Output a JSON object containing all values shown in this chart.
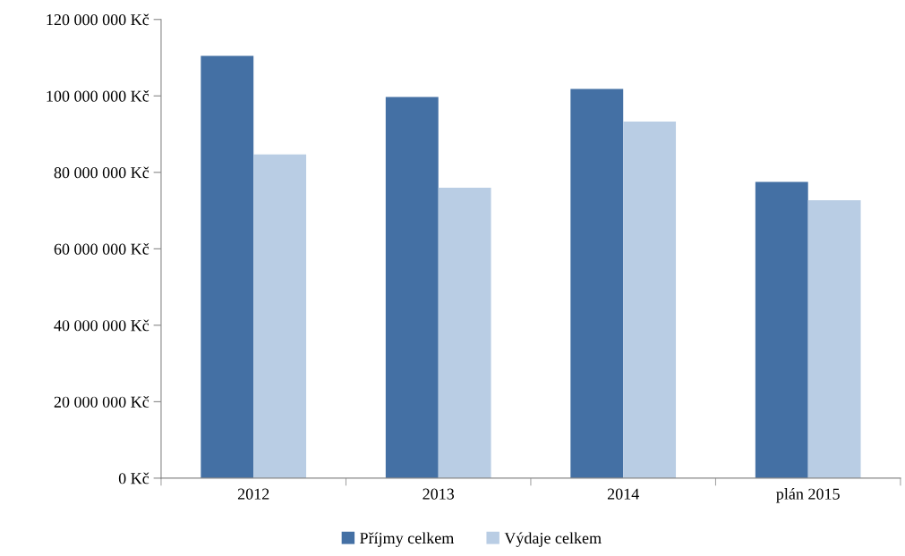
{
  "chart_data": {
    "type": "bar",
    "categories": [
      "2012",
      "2013",
      "2014",
      "plán 2015"
    ],
    "series": [
      {
        "name": "Příjmy celkem",
        "color": "#4470a4",
        "values": [
          110500000,
          99700000,
          101800000,
          77500000
        ]
      },
      {
        "name": "Výdaje celkem",
        "color": "#b9cde4",
        "values": [
          84700000,
          76000000,
          93300000,
          72700000
        ]
      }
    ],
    "ylim": [
      0,
      120000000
    ],
    "yticks": [
      {
        "value": 0,
        "label": "0 Kč"
      },
      {
        "value": 20000000,
        "label": "20 000 000 Kč"
      },
      {
        "value": 40000000,
        "label": "40 000 000 Kč"
      },
      {
        "value": 60000000,
        "label": "60 000 000 Kč"
      },
      {
        "value": 80000000,
        "label": "80 000 000 Kč"
      },
      {
        "value": 100000000,
        "label": "100 000 000 Kč"
      },
      {
        "value": 120000000,
        "label": "120 000 000 Kč"
      }
    ],
    "grid": false,
    "legend": "bottom"
  }
}
